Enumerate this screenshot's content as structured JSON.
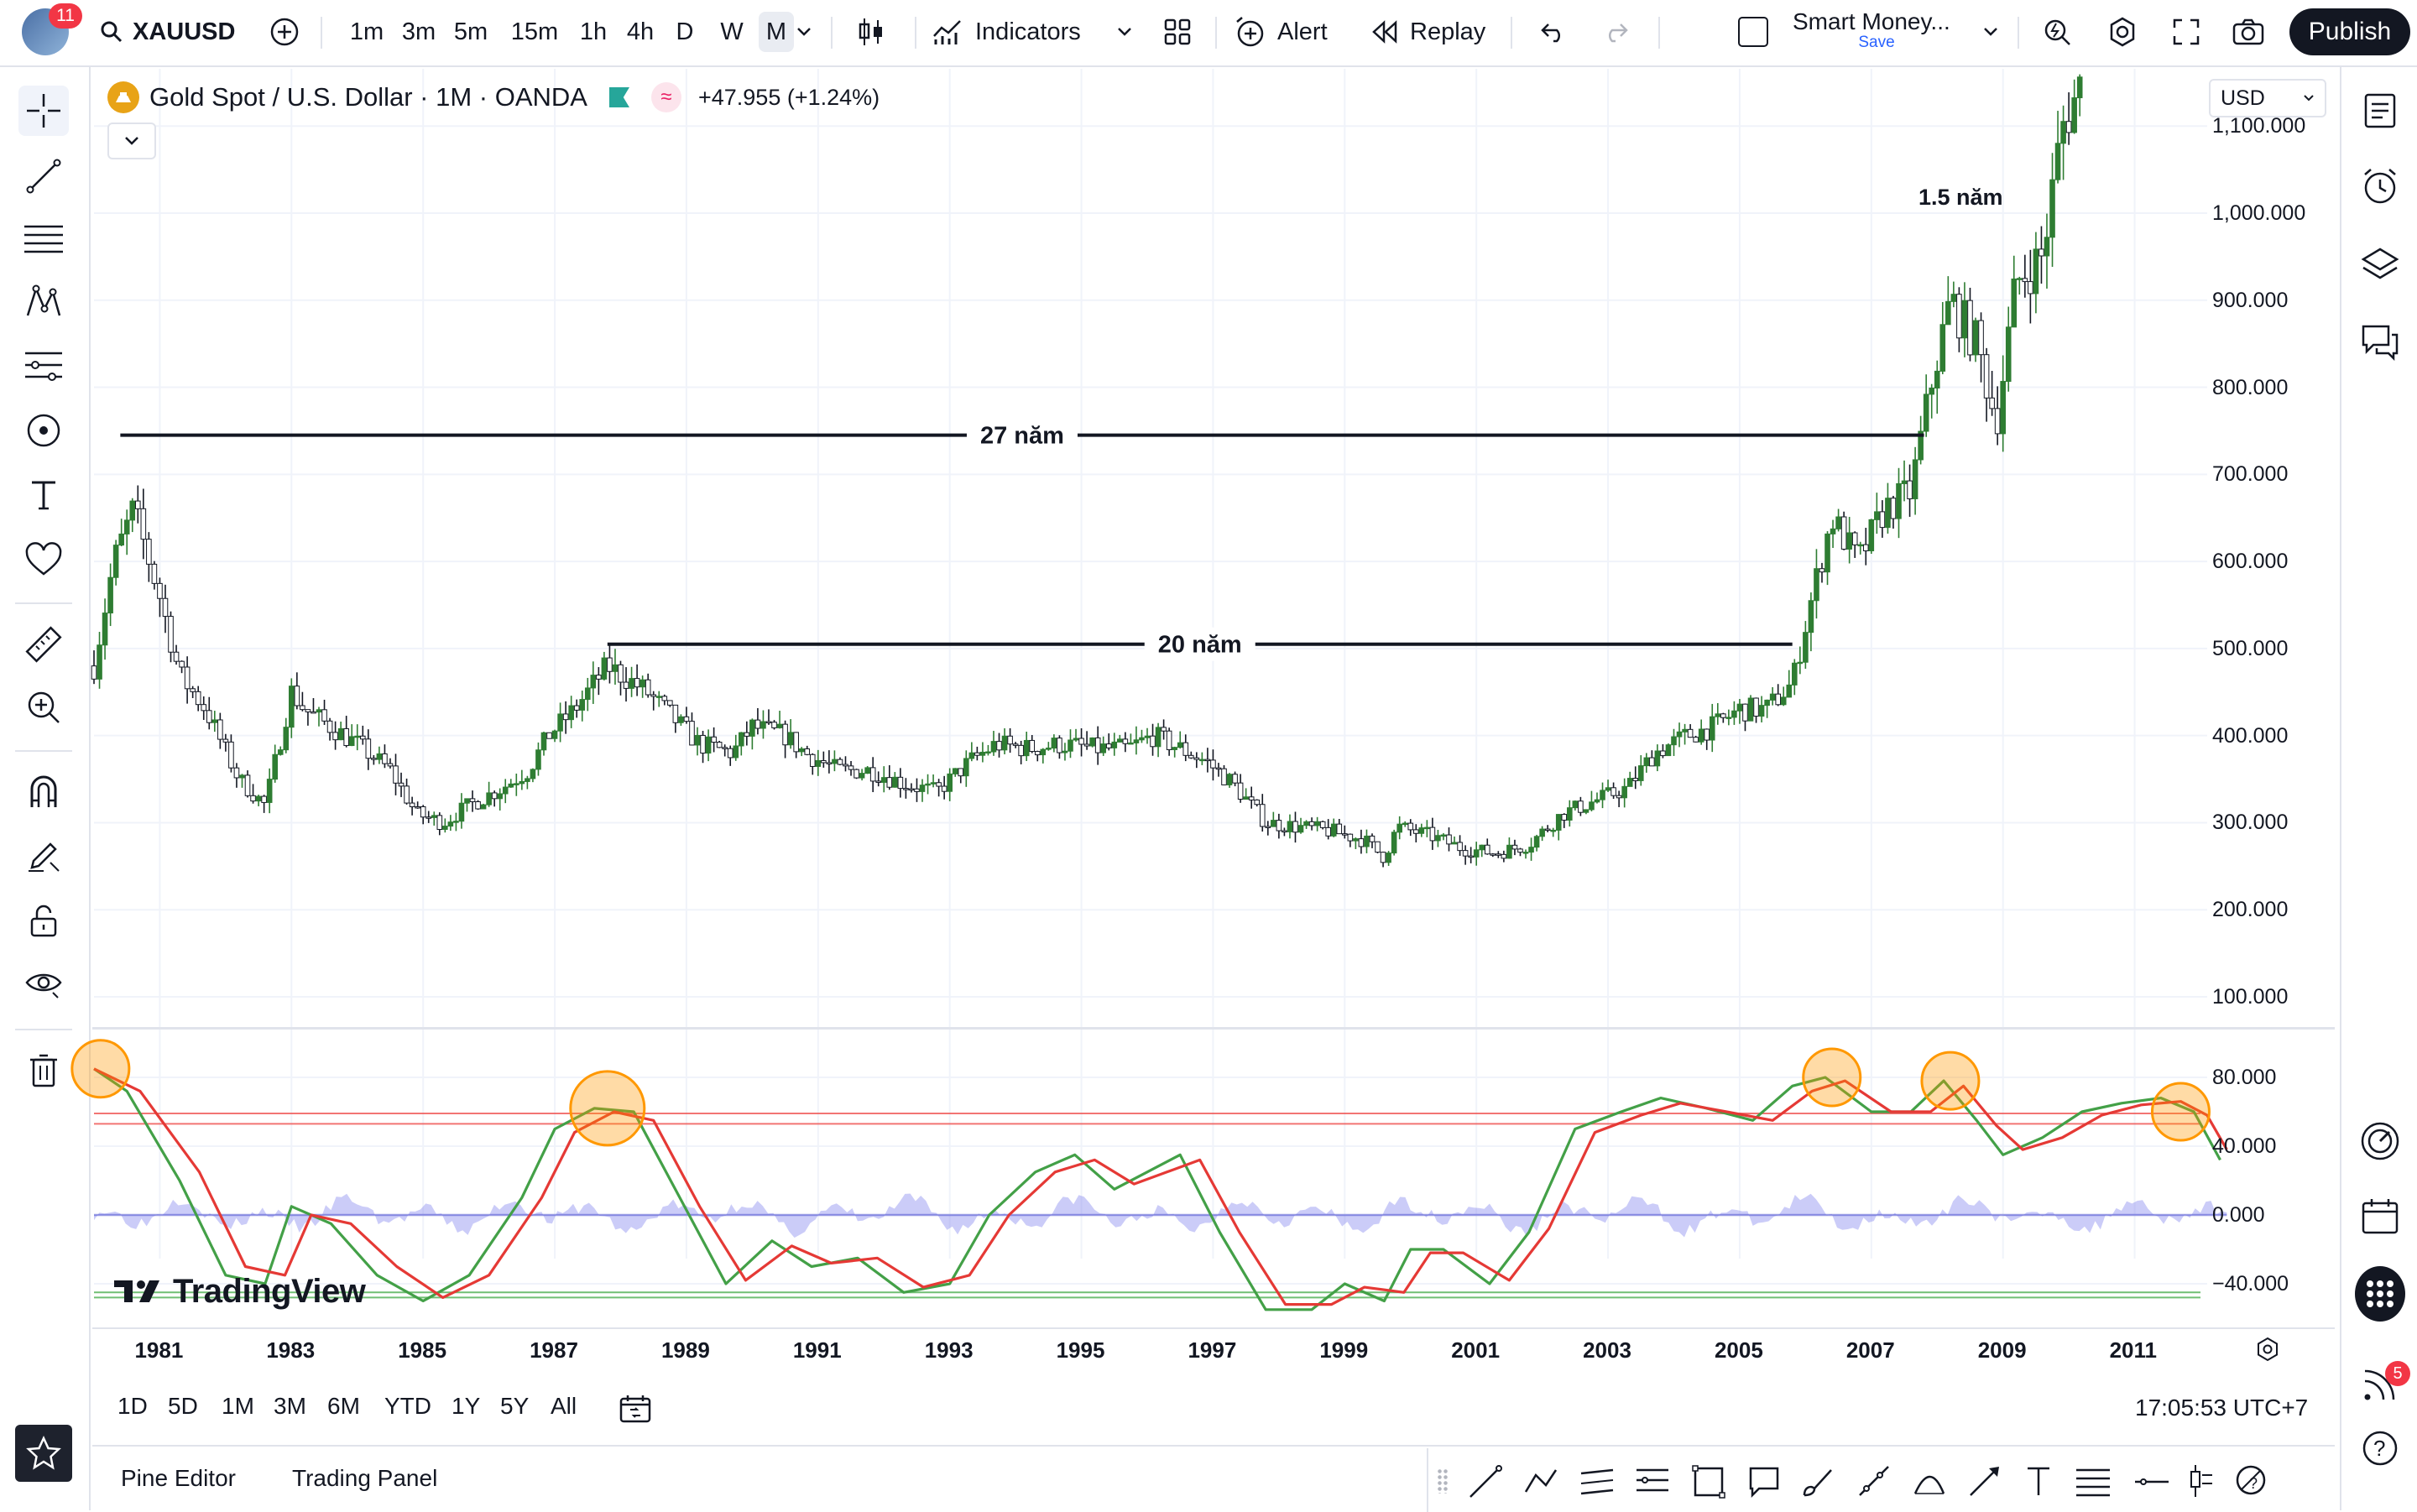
{
  "app": {
    "notification_count": "11"
  },
  "symbol": {
    "ticker": "XAUUSD"
  },
  "intervals": [
    "1m",
    "3m",
    "5m",
    "15m",
    "1h",
    "4h",
    "D",
    "W",
    "M"
  ],
  "active_interval": "M",
  "toolbar": {
    "indicators_label": "Indicators",
    "alert_label": "Alert",
    "replay_label": "Replay",
    "layout_name": "Smart Money...",
    "layout_save": "Save",
    "publish_label": "Publish"
  },
  "legend": {
    "title": "Gold Spot / U.S. Dollar · 1M · OANDA",
    "change": "+47.955 (+1.24%)"
  },
  "currency": "USD",
  "price_axis": [
    "1,100.000",
    "1,000.000",
    "900.000",
    "800.000",
    "700.000",
    "600.000",
    "500.000",
    "400.000",
    "300.000",
    "200.000",
    "100.000"
  ],
  "osc_axis": [
    "80.000",
    "40.000",
    "0.000",
    "−40.000"
  ],
  "time_axis": [
    "1981",
    "1983",
    "1985",
    "1987",
    "1989",
    "1991",
    "1993",
    "1995",
    "1997",
    "1999",
    "2001",
    "2003",
    "2005",
    "2007",
    "2009",
    "2011"
  ],
  "annotations": {
    "a27": "27 năm",
    "a20": "20 năm",
    "a15": "1.5 năm"
  },
  "watermark": "TradingView",
  "range_buttons": [
    "1D",
    "5D",
    "1M",
    "3M",
    "6M",
    "YTD",
    "1Y",
    "5Y",
    "All"
  ],
  "clock": "17:05:53 UTC+7",
  "bottom_tabs": {
    "pine": "Pine Editor",
    "trading": "Trading Panel"
  },
  "right_badge": "5",
  "colors": {
    "up": "#2e7d32",
    "down": "#131722",
    "fast": "#43a047",
    "slow": "#e53935",
    "hist": "#8c8ff0",
    "circle": "#ff9800",
    "accent": "#2962ff"
  },
  "chart_data": {
    "type": "candlestick",
    "x_range": [
      1980,
      2012
    ],
    "y_range": [
      0,
      1150
    ],
    "close_path": [
      [
        1980.0,
        480
      ],
      [
        1980.3,
        600
      ],
      [
        1980.6,
        660
      ],
      [
        1981.0,
        560
      ],
      [
        1981.3,
        470
      ],
      [
        1981.7,
        430
      ],
      [
        1982.2,
        350
      ],
      [
        1982.6,
        320
      ],
      [
        1983.0,
        450
      ],
      [
        1983.2,
        430
      ],
      [
        1983.6,
        410
      ],
      [
        1984.0,
        390
      ],
      [
        1984.5,
        360
      ],
      [
        1984.9,
        310
      ],
      [
        1985.3,
        300
      ],
      [
        1985.7,
        320
      ],
      [
        1986.2,
        340
      ],
      [
        1986.6,
        360
      ],
      [
        1986.9,
        400
      ],
      [
        1987.3,
        430
      ],
      [
        1987.8,
        480
      ],
      [
        1988.0,
        470
      ],
      [
        1988.4,
        450
      ],
      [
        1988.8,
        420
      ],
      [
        1989.2,
        390
      ],
      [
        1989.7,
        380
      ],
      [
        1990.0,
        410
      ],
      [
        1990.5,
        400
      ],
      [
        1990.8,
        380
      ],
      [
        1991.3,
        360
      ],
      [
        1991.8,
        360
      ],
      [
        1992.3,
        345
      ],
      [
        1992.8,
        335
      ],
      [
        1993.3,
        370
      ],
      [
        1993.7,
        390
      ],
      [
        1994.2,
        385
      ],
      [
        1994.7,
        390
      ],
      [
        1995.2,
        385
      ],
      [
        1995.7,
        385
      ],
      [
        1996.1,
        400
      ],
      [
        1996.5,
        385
      ],
      [
        1996.9,
        370
      ],
      [
        1997.3,
        345
      ],
      [
        1997.8,
        300
      ],
      [
        1998.3,
        295
      ],
      [
        1998.8,
        290
      ],
      [
        1999.3,
        280
      ],
      [
        1999.6,
        260
      ],
      [
        1999.8,
        295
      ],
      [
        2000.3,
        285
      ],
      [
        2000.8,
        270
      ],
      [
        2001.3,
        265
      ],
      [
        2001.8,
        275
      ],
      [
        2002.3,
        310
      ],
      [
        2002.8,
        325
      ],
      [
        2003.3,
        340
      ],
      [
        2003.7,
        380
      ],
      [
        2004.2,
        400
      ],
      [
        2004.6,
        410
      ],
      [
        2005.0,
        430
      ],
      [
        2005.4,
        430
      ],
      [
        2005.8,
        460
      ],
      [
        2006.1,
        560
      ],
      [
        2006.4,
        650
      ],
      [
        2006.8,
        600
      ],
      [
        2007.2,
        660
      ],
      [
        2007.6,
        680
      ],
      [
        2007.9,
        800
      ],
      [
        2008.2,
        900
      ],
      [
        2008.6,
        850
      ],
      [
        2008.9,
        760
      ],
      [
        2009.2,
        920
      ],
      [
        2009.6,
        950
      ],
      [
        2009.9,
        1100
      ],
      [
        2010.2,
        1150
      ]
    ],
    "oscillator": {
      "y_range": [
        -50,
        95
      ],
      "upper_lines": [
        59,
        53
      ],
      "lower_lines": [
        -45,
        -48
      ],
      "fast": [
        [
          1980,
          85
        ],
        [
          1980.5,
          72
        ],
        [
          1981.3,
          20
        ],
        [
          1982.0,
          -35
        ],
        [
          1982.6,
          -40
        ],
        [
          1983.0,
          5
        ],
        [
          1983.6,
          -5
        ],
        [
          1984.3,
          -35
        ],
        [
          1985.0,
          -50
        ],
        [
          1985.7,
          -35
        ],
        [
          1986.5,
          10
        ],
        [
          1987.0,
          50
        ],
        [
          1987.6,
          62
        ],
        [
          1988.2,
          60
        ],
        [
          1988.9,
          10
        ],
        [
          1989.6,
          -40
        ],
        [
          1990.3,
          -15
        ],
        [
          1990.9,
          -30
        ],
        [
          1991.6,
          -25
        ],
        [
          1992.3,
          -45
        ],
        [
          1993.0,
          -40
        ],
        [
          1993.6,
          0
        ],
        [
          1994.3,
          25
        ],
        [
          1994.9,
          35
        ],
        [
          1995.5,
          15
        ],
        [
          1996.0,
          25
        ],
        [
          1996.5,
          35
        ],
        [
          1997.1,
          -10
        ],
        [
          1997.8,
          -55
        ],
        [
          1998.5,
          -55
        ],
        [
          1999.0,
          -40
        ],
        [
          1999.6,
          -50
        ],
        [
          2000.0,
          -20
        ],
        [
          2000.5,
          -20
        ],
        [
          2001.2,
          -40
        ],
        [
          2001.8,
          -10
        ],
        [
          2002.5,
          50
        ],
        [
          2003.2,
          60
        ],
        [
          2003.8,
          68
        ],
        [
          2004.5,
          62
        ],
        [
          2005.2,
          55
        ],
        [
          2005.8,
          75
        ],
        [
          2006.3,
          80
        ],
        [
          2007.0,
          60
        ],
        [
          2007.6,
          60
        ],
        [
          2008.1,
          78
        ],
        [
          2008.6,
          55
        ],
        [
          2009.0,
          35
        ],
        [
          2009.6,
          45
        ],
        [
          2010.2,
          60
        ],
        [
          2010.8,
          65
        ],
        [
          2011.4,
          68
        ],
        [
          2011.9,
          60
        ],
        [
          2012.3,
          32
        ]
      ],
      "slow": [
        [
          1980,
          85
        ],
        [
          1980.7,
          72
        ],
        [
          1981.6,
          25
        ],
        [
          1982.3,
          -30
        ],
        [
          1982.9,
          -35
        ],
        [
          1983.3,
          0
        ],
        [
          1983.9,
          -5
        ],
        [
          1984.6,
          -30
        ],
        [
          1985.3,
          -48
        ],
        [
          1986.0,
          -35
        ],
        [
          1986.8,
          10
        ],
        [
          1987.3,
          48
        ],
        [
          1987.9,
          60
        ],
        [
          1988.5,
          55
        ],
        [
          1989.2,
          5
        ],
        [
          1989.9,
          -38
        ],
        [
          1990.6,
          -18
        ],
        [
          1991.2,
          -28
        ],
        [
          1991.9,
          -25
        ],
        [
          1992.6,
          -42
        ],
        [
          1993.3,
          -35
        ],
        [
          1993.9,
          0
        ],
        [
          1994.6,
          25
        ],
        [
          1995.2,
          32
        ],
        [
          1995.8,
          18
        ],
        [
          1996.3,
          25
        ],
        [
          1996.8,
          32
        ],
        [
          1997.4,
          -10
        ],
        [
          1998.1,
          -52
        ],
        [
          1998.8,
          -52
        ],
        [
          1999.3,
          -42
        ],
        [
          1999.9,
          -45
        ],
        [
          2000.3,
          -22
        ],
        [
          2000.8,
          -22
        ],
        [
          2001.5,
          -38
        ],
        [
          2002.1,
          -8
        ],
        [
          2002.8,
          48
        ],
        [
          2003.5,
          58
        ],
        [
          2004.1,
          65
        ],
        [
          2004.8,
          60
        ],
        [
          2005.5,
          55
        ],
        [
          2006.1,
          72
        ],
        [
          2006.6,
          78
        ],
        [
          2007.3,
          60
        ],
        [
          2007.9,
          60
        ],
        [
          2008.4,
          75
        ],
        [
          2008.9,
          52
        ],
        [
          2009.3,
          38
        ],
        [
          2009.9,
          45
        ],
        [
          2010.5,
          58
        ],
        [
          2011.1,
          64
        ],
        [
          2011.7,
          66
        ],
        [
          2012.1,
          58
        ],
        [
          2012.4,
          38
        ]
      ],
      "highlight_years": [
        1980.1,
        1987.8,
        2006.4,
        2008.2,
        2011.7
      ]
    }
  }
}
